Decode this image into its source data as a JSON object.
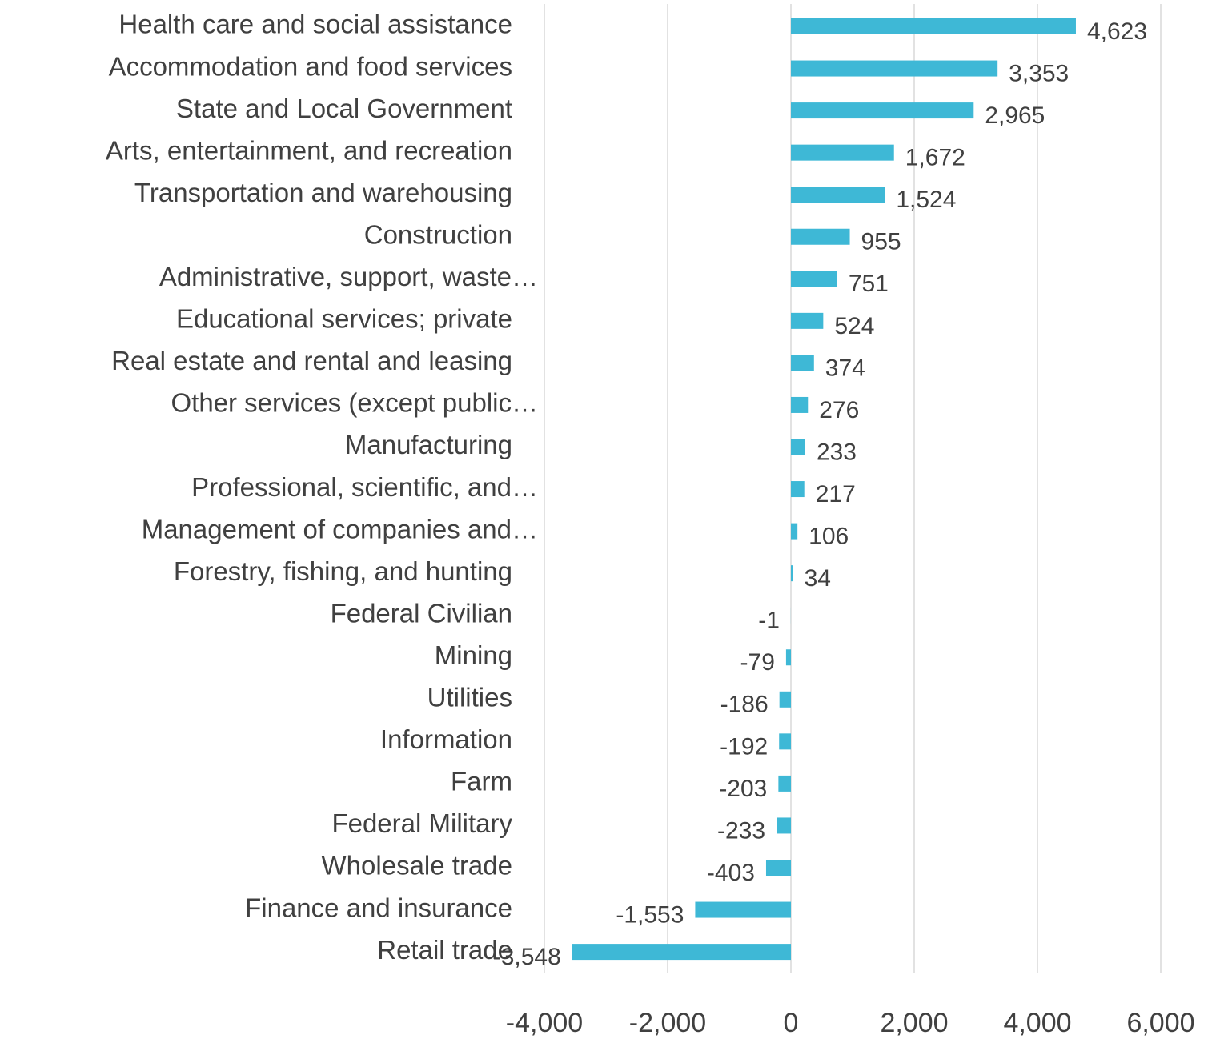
{
  "chart_data": {
    "type": "barh",
    "categories": [
      "Health care and social assistance",
      "Accommodation and food services",
      "State and Local Government",
      "Arts, entertainment, and recreation",
      "Transportation and warehousing",
      "Construction",
      "Administrative, support, waste…",
      "Educational services; private",
      "Real estate and rental and leasing",
      "Other services (except public…",
      "Manufacturing",
      "Professional, scientific, and…",
      "Management of companies and…",
      "Forestry, fishing, and hunting",
      "Federal Civilian",
      "Mining",
      "Utilities",
      "Information",
      "Farm",
      "Federal Military",
      "Wholesale trade",
      "Finance and insurance",
      "Retail trade"
    ],
    "values": [
      4623,
      3353,
      2965,
      1672,
      1524,
      955,
      751,
      524,
      374,
      276,
      233,
      217,
      106,
      34,
      -1,
      -79,
      -186,
      -192,
      -203,
      -233,
      -403,
      -1553,
      -3548
    ],
    "value_labels": [
      "4,623",
      "3,353",
      "2,965",
      "1,672",
      "1,524",
      "955",
      "751",
      "524",
      "374",
      "276",
      "233",
      "217",
      "106",
      "34",
      "-1",
      "-79",
      "-186",
      "-192",
      "-203",
      "-233",
      "-403",
      "-1,553",
      "-3,548"
    ],
    "color": "#3eb8d6",
    "xlim": [
      -4000,
      6000
    ],
    "xticks": [
      {
        "value": -4000,
        "label": "-4,000"
      },
      {
        "value": -2000,
        "label": "-2,000"
      },
      0,
      {
        "value": 2000,
        "label": "2,000"
      },
      {
        "value": 4000,
        "label": "4,000"
      },
      {
        "value": 6000,
        "label": "6,000"
      }
    ],
    "grid": true
  }
}
